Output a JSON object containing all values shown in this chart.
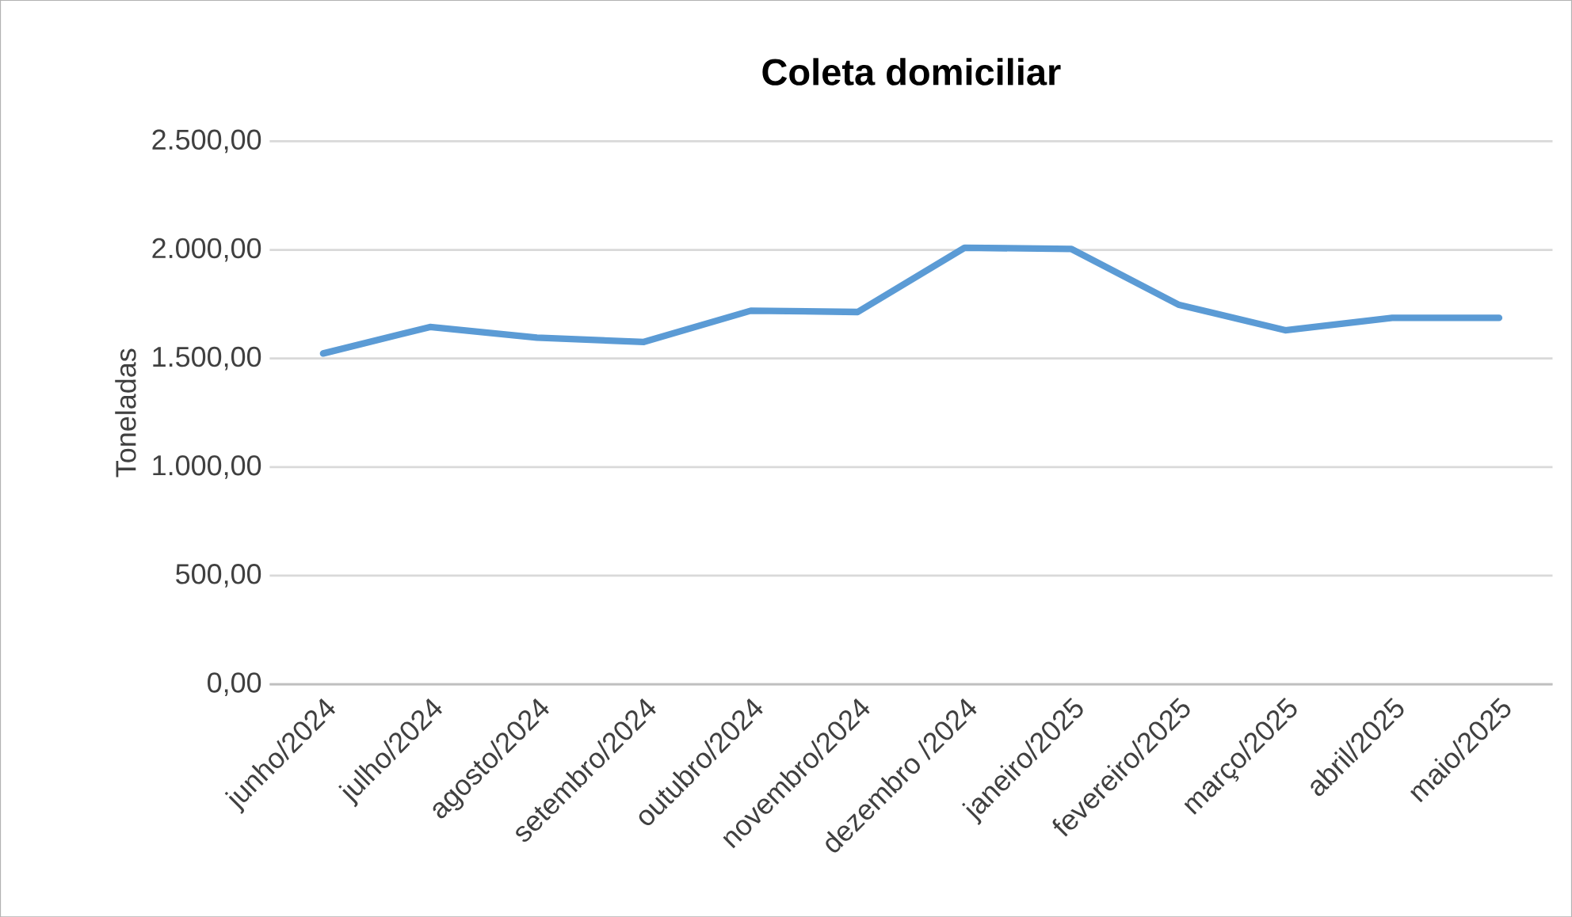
{
  "chart_data": {
    "type": "line",
    "title": "Coleta domiciliar",
    "ylabel": "Toneladas",
    "categories": [
      "junho/2024",
      "julho/2024",
      "agosto/2024",
      "setembro/2024",
      "outubro/2024",
      "novembro/2024",
      "dezembro /2024",
      "janeiro/2025",
      "fevereiro/2025",
      "março/2025",
      "abril/2025",
      "maio/2025"
    ],
    "series": [
      {
        "color": "#5b9bd5",
        "values": [
          1523,
          1645,
          1596,
          1576,
          1720,
          1714,
          2010,
          2004,
          1748,
          1630,
          1687,
          1687
        ]
      }
    ],
    "ylim": [
      0,
      2500
    ],
    "yticks": [
      {
        "value": 0,
        "label": "0,00"
      },
      {
        "value": 500,
        "label": "500,00"
      },
      {
        "value": 1000,
        "label": "1.000,00"
      },
      {
        "value": 1500,
        "label": "1.500,00"
      },
      {
        "value": 2000,
        "label": "2.000,00"
      },
      {
        "value": 2500,
        "label": "2.500,00"
      }
    ],
    "grid": "y",
    "marker": "none",
    "line_style": "solid"
  }
}
